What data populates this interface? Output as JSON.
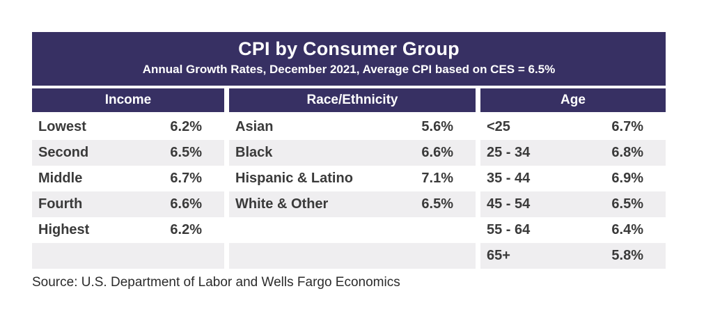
{
  "header": {
    "title": "CPI by Consumer Group",
    "subtitle": "Annual Growth Rates, December 2021, Average CPI based on CES = 6.5%"
  },
  "table": {
    "groups": [
      {
        "header": "Income",
        "rows": [
          {
            "label": "Lowest",
            "value": "6.2%"
          },
          {
            "label": "Second",
            "value": "6.5%"
          },
          {
            "label": "Middle",
            "value": "6.7%"
          },
          {
            "label": "Fourth",
            "value": "6.6%"
          },
          {
            "label": "Highest",
            "value": "6.2%"
          },
          {
            "label": "",
            "value": ""
          }
        ]
      },
      {
        "header": "Race/Ethnicity",
        "rows": [
          {
            "label": "Asian",
            "value": "5.6%"
          },
          {
            "label": "Black",
            "value": "6.6%"
          },
          {
            "label": "Hispanic & Latino",
            "value": "7.1%"
          },
          {
            "label": "White & Other",
            "value": "6.5%"
          },
          {
            "label": "",
            "value": ""
          },
          {
            "label": "",
            "value": ""
          }
        ]
      },
      {
        "header": "Age",
        "rows": [
          {
            "label": "<25",
            "value": "6.7%"
          },
          {
            "label": "25 - 34",
            "value": "6.8%"
          },
          {
            "label": "35 - 44",
            "value": "6.9%"
          },
          {
            "label": "45 - 54",
            "value": "6.5%"
          },
          {
            "label": "55 - 64",
            "value": "6.4%"
          },
          {
            "label": "65+",
            "value": "5.8%"
          }
        ]
      }
    ]
  },
  "footer": {
    "source": "Source: U.S. Department of Labor and Wells Fargo Economics"
  },
  "colors": {
    "banner": "#373063",
    "stripe": "#efeef0",
    "header_text": "#ffffff",
    "data_text": "#3a3a3a"
  },
  "chart_data": {
    "type": "table",
    "title": "CPI by Consumer Group",
    "subtitle": "Annual Growth Rates, December 2021, Average CPI based on CES = 6.5%",
    "units": "percent, annual growth rate",
    "average_cpi_ces": 6.5,
    "groups": [
      {
        "name": "Income",
        "categories": [
          "Lowest",
          "Second",
          "Middle",
          "Fourth",
          "Highest"
        ],
        "values": [
          6.2,
          6.5,
          6.7,
          6.6,
          6.2
        ]
      },
      {
        "name": "Race/Ethnicity",
        "categories": [
          "Asian",
          "Black",
          "Hispanic & Latino",
          "White & Other"
        ],
        "values": [
          5.6,
          6.6,
          7.1,
          6.5
        ]
      },
      {
        "name": "Age",
        "categories": [
          "<25",
          "25 - 34",
          "35 - 44",
          "45 - 54",
          "55 - 64",
          "65+"
        ],
        "values": [
          6.7,
          6.8,
          6.9,
          6.5,
          6.4,
          5.8
        ]
      }
    ],
    "source": "Source: U.S. Department of Labor and Wells Fargo Economics"
  }
}
